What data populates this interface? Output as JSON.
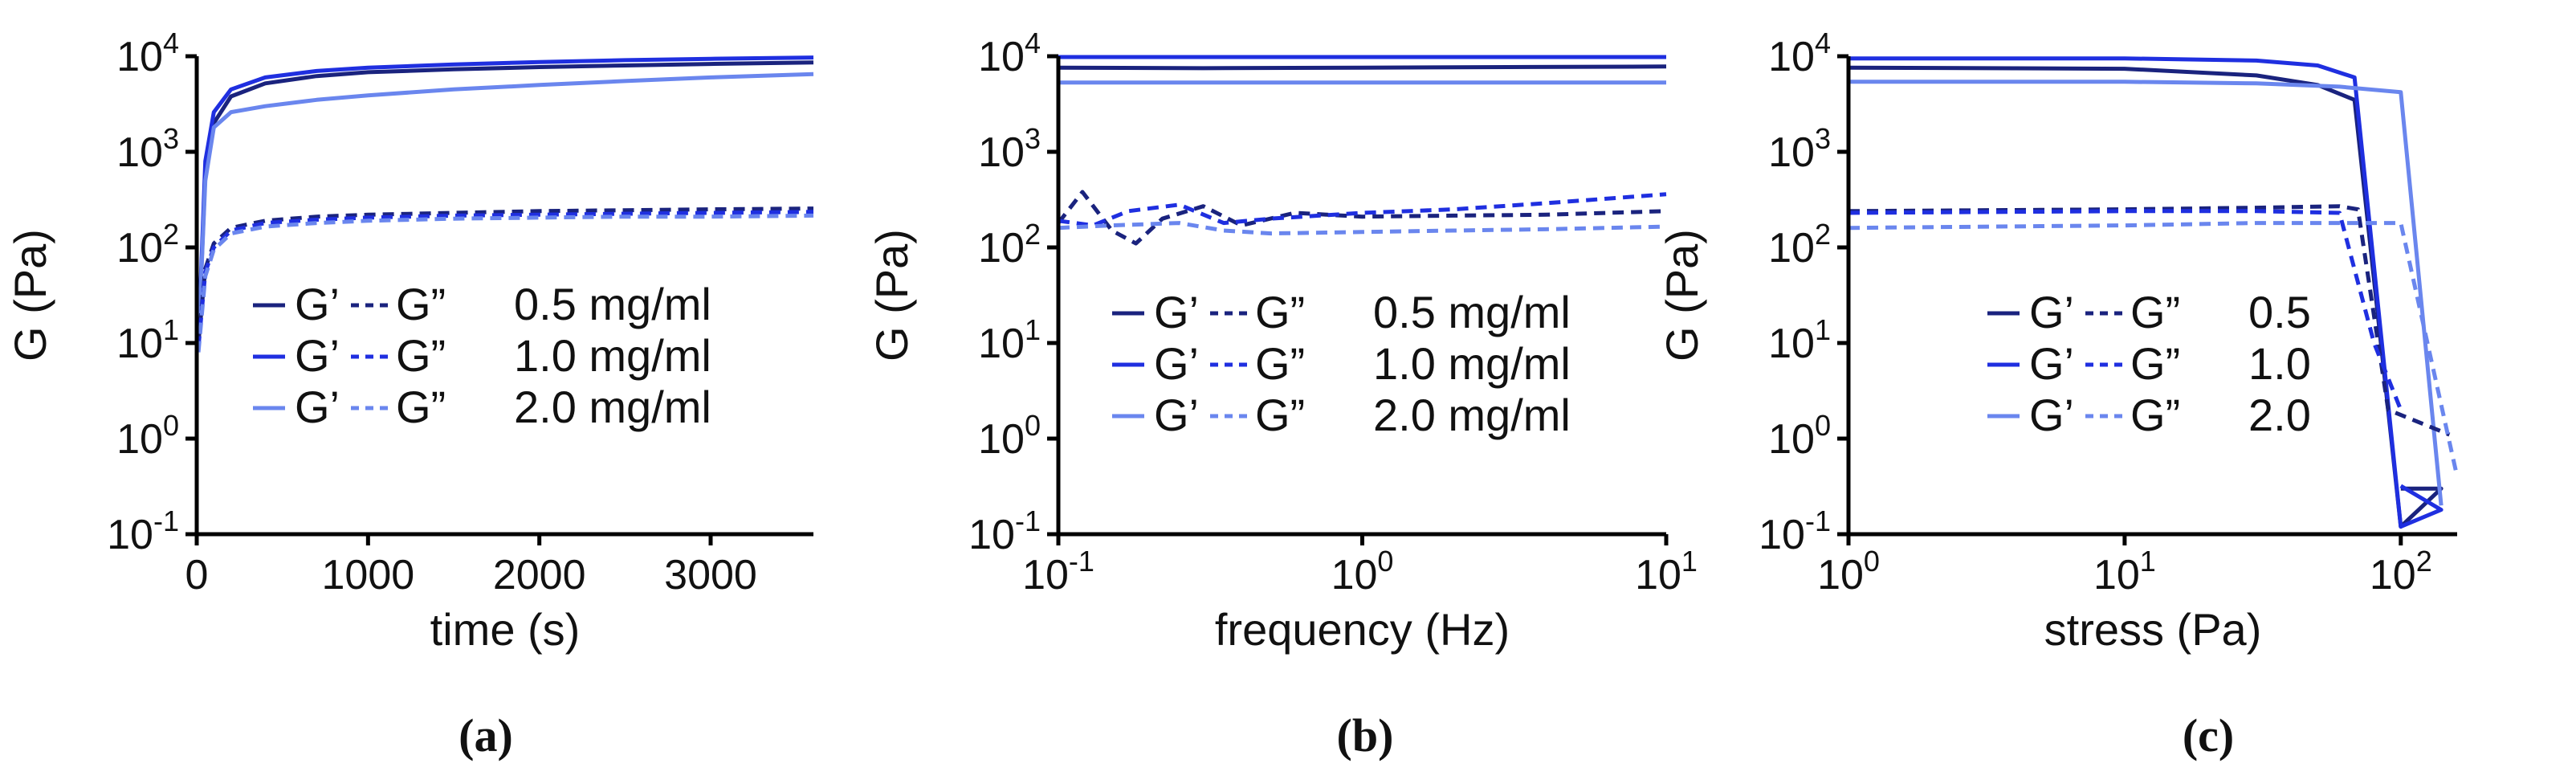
{
  "colors": {
    "c05": "#1a237e",
    "c10": "#1f2fe0",
    "c20": "#6a86ee",
    "axis": "#000000"
  },
  "chart_data": [
    {
      "type": "line",
      "panel_label": "(a)",
      "xlabel": "time (s)",
      "ylabel": "G (Pa)",
      "xscale": "linear",
      "yscale": "log",
      "xlim": [
        0,
        3600
      ],
      "ylim": [
        0.1,
        10000
      ],
      "xticks": [
        {
          "v": 0,
          "label": "0"
        },
        {
          "v": 1000,
          "label": "1000"
        },
        {
          "v": 2000,
          "label": "2000"
        },
        {
          "v": 3000,
          "label": "3000"
        }
      ],
      "legend": [
        {
          "g1": "G’",
          "g2": "G”",
          "label": "0.5 mg/ml",
          "color_key": "c05"
        },
        {
          "g1": "G’",
          "g2": "G”",
          "label": "1.0 mg/ml",
          "color_key": "c10"
        },
        {
          "g1": "G’",
          "g2": "G”",
          "label": "2.0 mg/ml",
          "color_key": "c20"
        }
      ],
      "series": [
        {
          "name": "G' 0.5 mg/ml",
          "color_key": "c05",
          "dash": false,
          "points": [
            [
              10,
              10
            ],
            [
              50,
              600
            ],
            [
              100,
              2000
            ],
            [
              200,
              3800
            ],
            [
              400,
              5200
            ],
            [
              700,
              6200
            ],
            [
              1000,
              6800
            ],
            [
              1500,
              7300
            ],
            [
              2000,
              7700
            ],
            [
              2500,
              8000
            ],
            [
              3000,
              8300
            ],
            [
              3600,
              8600
            ]
          ]
        },
        {
          "name": "G' 1.0 mg/ml",
          "color_key": "c10",
          "dash": false,
          "points": [
            [
              10,
              10
            ],
            [
              50,
              800
            ],
            [
              100,
              2600
            ],
            [
              200,
              4500
            ],
            [
              400,
              6000
            ],
            [
              700,
              7000
            ],
            [
              1000,
              7600
            ],
            [
              1500,
              8200
            ],
            [
              2000,
              8700
            ],
            [
              2500,
              9100
            ],
            [
              3000,
              9400
            ],
            [
              3600,
              9700
            ]
          ]
        },
        {
          "name": "G' 2.0 mg/ml",
          "color_key": "c20",
          "dash": false,
          "points": [
            [
              10,
              10
            ],
            [
              50,
              500
            ],
            [
              100,
              1800
            ],
            [
              200,
              2600
            ],
            [
              400,
              3000
            ],
            [
              700,
              3500
            ],
            [
              1000,
              3900
            ],
            [
              1500,
              4500
            ],
            [
              2000,
              5000
            ],
            [
              2500,
              5500
            ],
            [
              3000,
              6000
            ],
            [
              3600,
              6500
            ]
          ]
        },
        {
          "name": "G\" 0.5 mg/ml",
          "color_key": "c05",
          "dash": true,
          "points": [
            [
              10,
              10
            ],
            [
              50,
              60
            ],
            [
              100,
              110
            ],
            [
              200,
              160
            ],
            [
              400,
              190
            ],
            [
              700,
              210
            ],
            [
              1000,
              220
            ],
            [
              1500,
              230
            ],
            [
              2000,
              240
            ],
            [
              2500,
              245
            ],
            [
              3000,
              250
            ],
            [
              3600,
              255
            ]
          ]
        },
        {
          "name": "G\" 1.0 mg/ml",
          "color_key": "c10",
          "dash": true,
          "points": [
            [
              10,
              9
            ],
            [
              50,
              55
            ],
            [
              100,
              100
            ],
            [
              200,
              150
            ],
            [
              400,
              180
            ],
            [
              700,
              195
            ],
            [
              1000,
              205
            ],
            [
              1500,
              215
            ],
            [
              2000,
              220
            ],
            [
              2500,
              225
            ],
            [
              3000,
              230
            ],
            [
              3600,
              235
            ]
          ]
        },
        {
          "name": "G\" 2.0 mg/ml",
          "color_key": "c20",
          "dash": true,
          "points": [
            [
              10,
              8
            ],
            [
              50,
              50
            ],
            [
              100,
              95
            ],
            [
              200,
              140
            ],
            [
              400,
              165
            ],
            [
              700,
              180
            ],
            [
              1000,
              190
            ],
            [
              1500,
              200
            ],
            [
              2000,
              205
            ],
            [
              2500,
              210
            ],
            [
              3000,
              210
            ],
            [
              3600,
              215
            ]
          ]
        }
      ]
    },
    {
      "type": "line",
      "panel_label": "(b)",
      "xlabel": "frequency (Hz)",
      "ylabel": "G (Pa)",
      "xscale": "log",
      "yscale": "log",
      "xlim": [
        0.1,
        10
      ],
      "ylim": [
        0.1,
        10000
      ],
      "legend": [
        {
          "g1": "G’",
          "g2": "G”",
          "label": "0.5 mg/ml",
          "color_key": "c05"
        },
        {
          "g1": "G’",
          "g2": "G”",
          "label": "1.0 mg/ml",
          "color_key": "c10"
        },
        {
          "g1": "G’",
          "g2": "G”",
          "label": "2.0 mg/ml",
          "color_key": "c20"
        }
      ],
      "series": [
        {
          "name": "G' 0.5 mg/ml",
          "color_key": "c05",
          "dash": false,
          "points": [
            [
              0.1,
              7600
            ],
            [
              0.3,
              7500
            ],
            [
              1,
              7600
            ],
            [
              3,
              7700
            ],
            [
              10,
              7800
            ]
          ]
        },
        {
          "name": "G' 1.0 mg/ml",
          "color_key": "c10",
          "dash": false,
          "points": [
            [
              0.1,
              9800
            ],
            [
              0.3,
              9800
            ],
            [
              1,
              9800
            ],
            [
              3,
              9800
            ],
            [
              10,
              9800
            ]
          ]
        },
        {
          "name": "G' 2.0 mg/ml",
          "color_key": "c20",
          "dash": false,
          "points": [
            [
              0.1,
              5300
            ],
            [
              0.3,
              5300
            ],
            [
              1,
              5300
            ],
            [
              3,
              5300
            ],
            [
              10,
              5300
            ]
          ]
        },
        {
          "name": "G\" 0.5 mg/ml",
          "color_key": "c05",
          "dash": true,
          "points": [
            [
              0.1,
              180
            ],
            [
              0.12,
              380
            ],
            [
              0.15,
              150
            ],
            [
              0.18,
              110
            ],
            [
              0.22,
              200
            ],
            [
              0.3,
              270
            ],
            [
              0.4,
              170
            ],
            [
              0.6,
              230
            ],
            [
              1,
              210
            ],
            [
              2,
              215
            ],
            [
              4,
              220
            ],
            [
              10,
              240
            ]
          ]
        },
        {
          "name": "G\" 1.0 mg/ml",
          "color_key": "c10",
          "dash": true,
          "points": [
            [
              0.1,
              190
            ],
            [
              0.13,
              170
            ],
            [
              0.17,
              240
            ],
            [
              0.25,
              280
            ],
            [
              0.35,
              180
            ],
            [
              0.5,
              200
            ],
            [
              1,
              230
            ],
            [
              2,
              250
            ],
            [
              4,
              290
            ],
            [
              10,
              360
            ]
          ]
        },
        {
          "name": "G\" 2.0 mg/ml",
          "color_key": "c20",
          "dash": true,
          "points": [
            [
              0.1,
              160
            ],
            [
              0.15,
              170
            ],
            [
              0.25,
              180
            ],
            [
              0.35,
              150
            ],
            [
              0.5,
              140
            ],
            [
              1,
              145
            ],
            [
              2,
              150
            ],
            [
              4,
              155
            ],
            [
              10,
              165
            ]
          ]
        }
      ]
    },
    {
      "type": "line",
      "panel_label": "(c)",
      "xlabel": "stress (Pa)",
      "ylabel": "G (Pa)",
      "xscale": "log",
      "yscale": "log",
      "xlim": [
        1,
        160
      ],
      "ylim": [
        0.1,
        10000
      ],
      "legend": [
        {
          "g1": "G’",
          "g2": "G”",
          "label": "0.5",
          "color_key": "c05"
        },
        {
          "g1": "G’",
          "g2": "G”",
          "label": "1.0",
          "color_key": "c10"
        },
        {
          "g1": "G’",
          "g2": "G”",
          "label": "2.0",
          "color_key": "c20"
        }
      ],
      "series": [
        {
          "name": "G' 0.5",
          "color_key": "c05",
          "dash": false,
          "points": [
            [
              1,
              7600
            ],
            [
              10,
              7400
            ],
            [
              30,
              6300
            ],
            [
              50,
              5000
            ],
            [
              68,
              3500
            ],
            [
              100,
              0.12
            ],
            [
              140,
              0.3
            ],
            [
              100,
              0.3
            ]
          ]
        },
        {
          "name": "G' 1.0",
          "color_key": "c10",
          "dash": false,
          "points": [
            [
              1,
              9500
            ],
            [
              10,
              9500
            ],
            [
              30,
              9000
            ],
            [
              50,
              8000
            ],
            [
              68,
              6000
            ],
            [
              100,
              0.12
            ],
            [
              140,
              0.18
            ],
            [
              100,
              0.32
            ]
          ]
        },
        {
          "name": "G' 2.0",
          "color_key": "c20",
          "dash": false,
          "points": [
            [
              1,
              5400
            ],
            [
              10,
              5400
            ],
            [
              30,
              5200
            ],
            [
              60,
              4800
            ],
            [
              100,
              4200
            ],
            [
              140,
              0.2
            ]
          ]
        },
        {
          "name": "G\" 0.5",
          "color_key": "c05",
          "dash": true,
          "points": [
            [
              1,
              240
            ],
            [
              10,
              250
            ],
            [
              30,
              260
            ],
            [
              60,
              270
            ],
            [
              70,
              250
            ],
            [
              90,
              2
            ],
            [
              150,
              1.1
            ]
          ]
        },
        {
          "name": "G\" 1.0",
          "color_key": "c10",
          "dash": true,
          "points": [
            [
              1,
              230
            ],
            [
              10,
              240
            ],
            [
              30,
              240
            ],
            [
              60,
              230
            ],
            [
              80,
              10
            ],
            [
              100,
              2
            ]
          ]
        },
        {
          "name": "G\" 2.0",
          "color_key": "c20",
          "dash": true,
          "points": [
            [
              1,
              160
            ],
            [
              10,
              170
            ],
            [
              30,
              180
            ],
            [
              100,
              180
            ],
            [
              160,
              0.4
            ]
          ]
        }
      ]
    }
  ]
}
